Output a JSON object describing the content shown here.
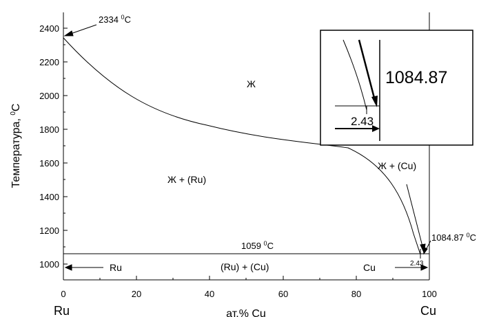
{
  "axes": {
    "ylabel": "Температура, ",
    "ylabel_sup": "0",
    "ylabel_unit": "C",
    "xlabel": "ат.% Cu",
    "y_ticks": [
      "1000",
      "1200",
      "1400",
      "1600",
      "1800",
      "2000",
      "2200",
      "2400"
    ],
    "x_ticks": [
      "0",
      "20",
      "40",
      "60",
      "80",
      "100"
    ],
    "left_element": "Ru",
    "right_element": "Cu"
  },
  "labels": {
    "ru_melt_value": "2334 ",
    "ru_melt_sup": "0",
    "ru_melt_unit": "C",
    "eutectic_value": "1059 ",
    "eutectic_sup": "0",
    "eutectic_unit": "C",
    "cu_melt_value": "1084.87 ",
    "cu_melt_sup": "0",
    "cu_melt_unit": "C",
    "liquid": "Ж",
    "liquid_ru": "Ж + (Ru)",
    "liquid_cu": "Ж + (Cu)",
    "ru_cu": "(Ru) + (Cu)",
    "ru_region": "Ru",
    "cu_region": "Cu",
    "eutectic_comp": "2.43"
  },
  "inset": {
    "temp": "1084.87",
    "comp": "2.43"
  }
}
